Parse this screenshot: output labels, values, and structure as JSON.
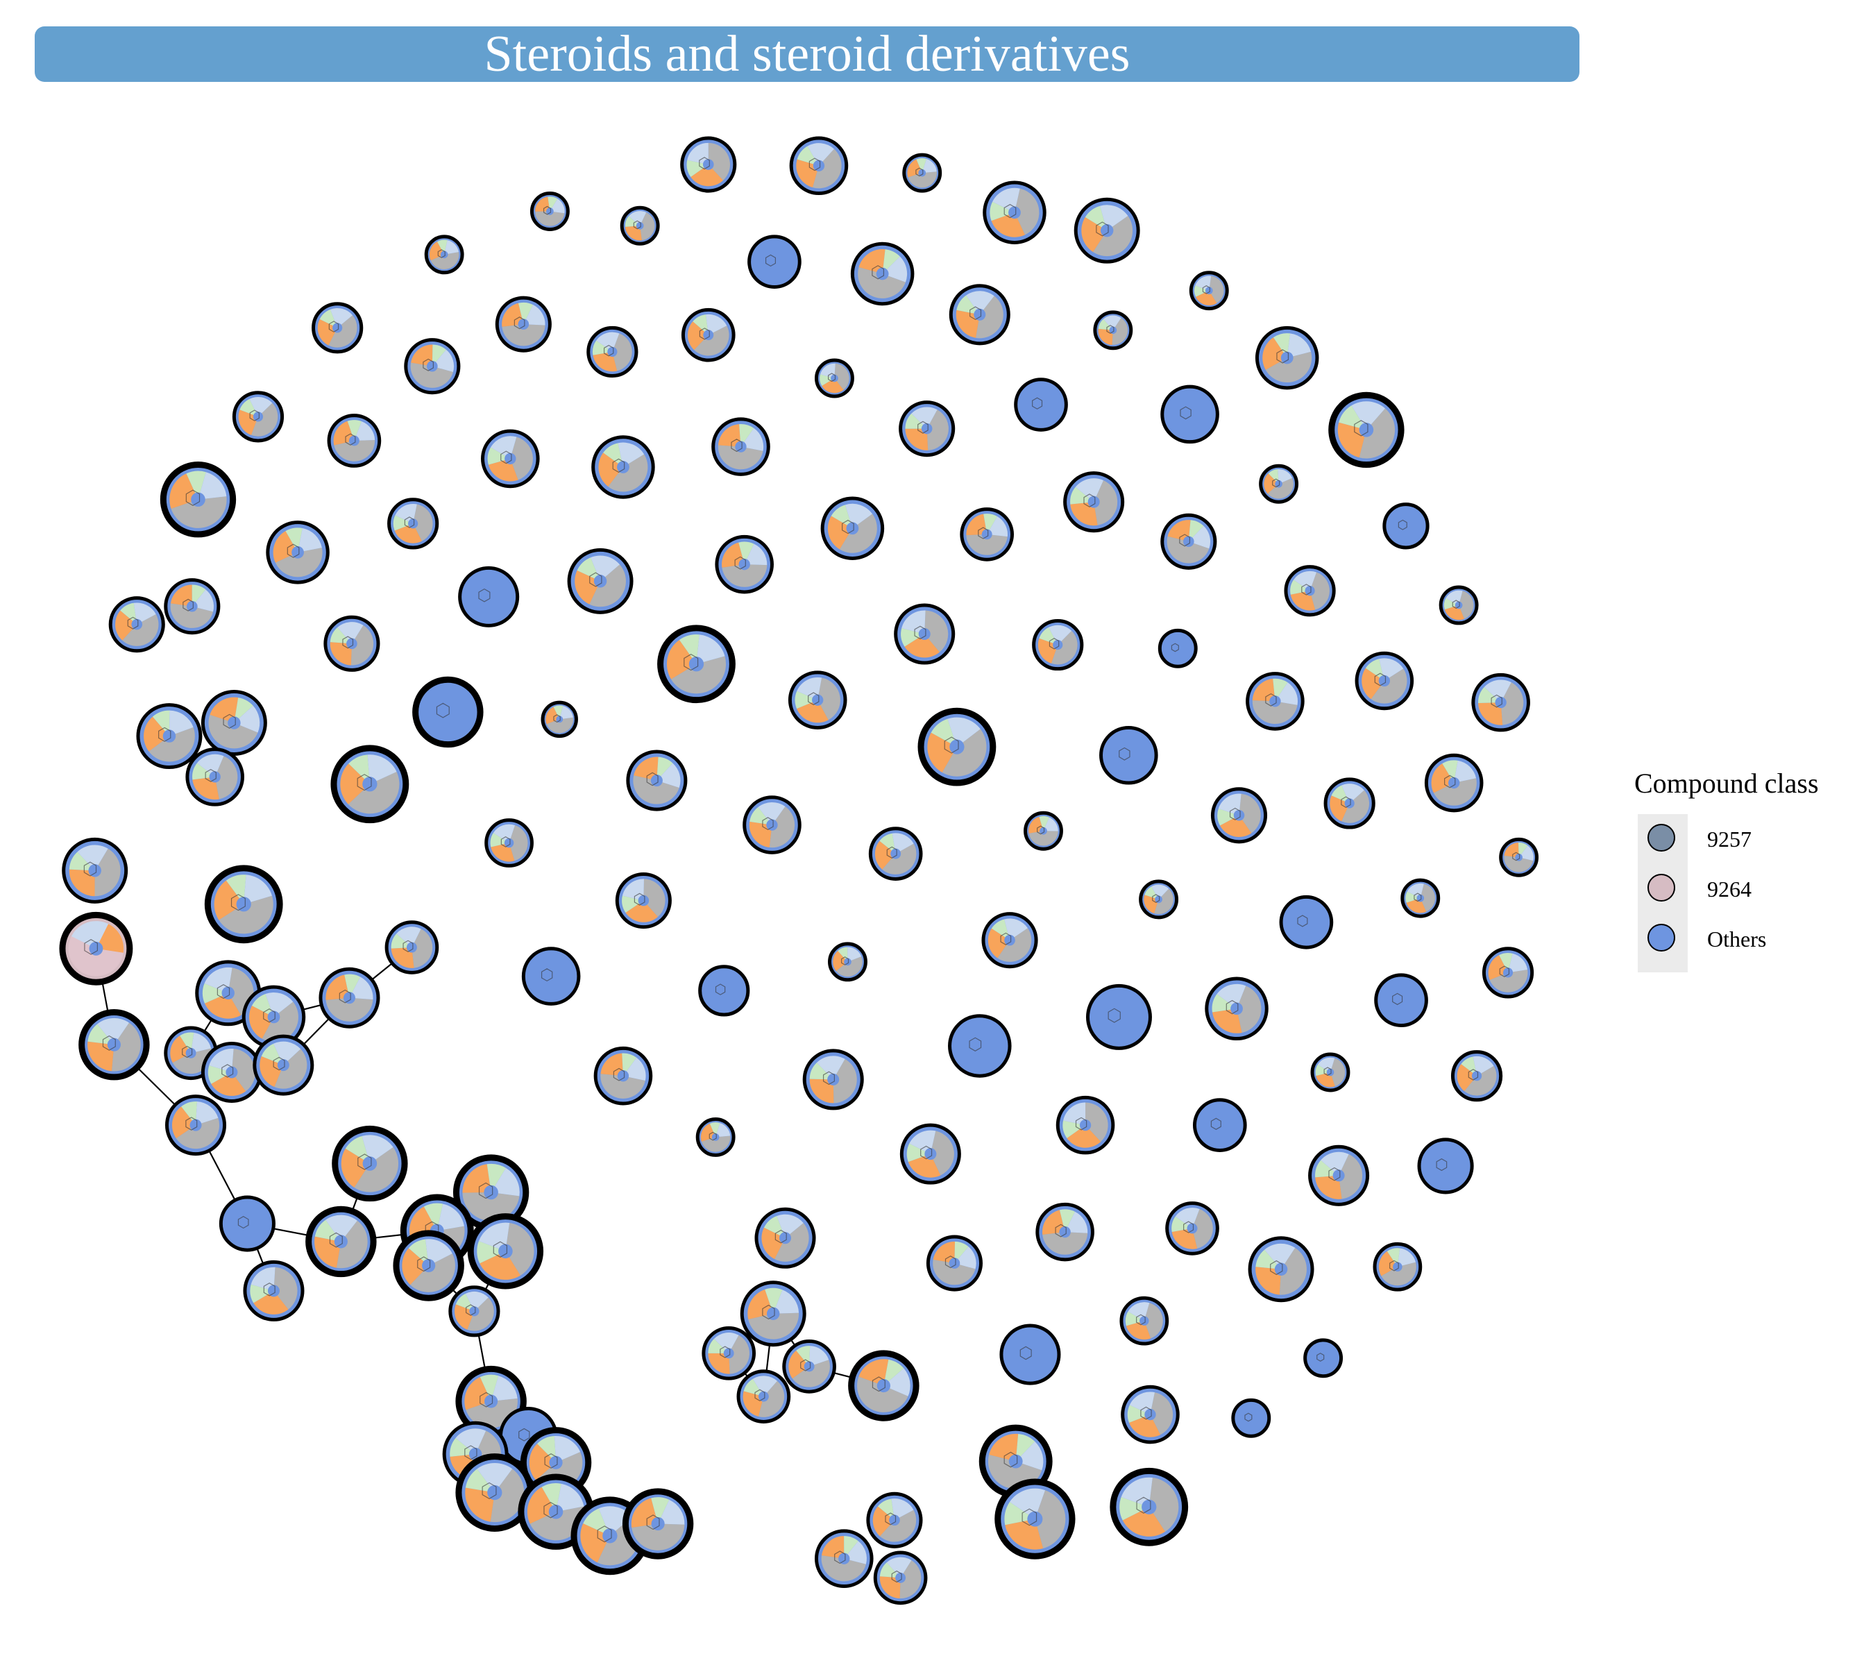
{
  "title": "Steroids and steroid derivatives",
  "legend": {
    "title": "Compound class",
    "items": [
      {
        "label": "9257",
        "color": "#7a8ea6"
      },
      {
        "label": "9264",
        "color": "#d6bcc3"
      },
      {
        "label": "Others",
        "color": "#6e95e0"
      }
    ]
  },
  "colors": {
    "node_fill": "#6e95e0",
    "ring_gray": "#b3b3b3",
    "ring_orange": "#f8a45a",
    "ring_green": "#c8e8c2",
    "ring_lightblue": "#c9d9ef",
    "outline": "#000000",
    "edge": "#000000"
  }
}
